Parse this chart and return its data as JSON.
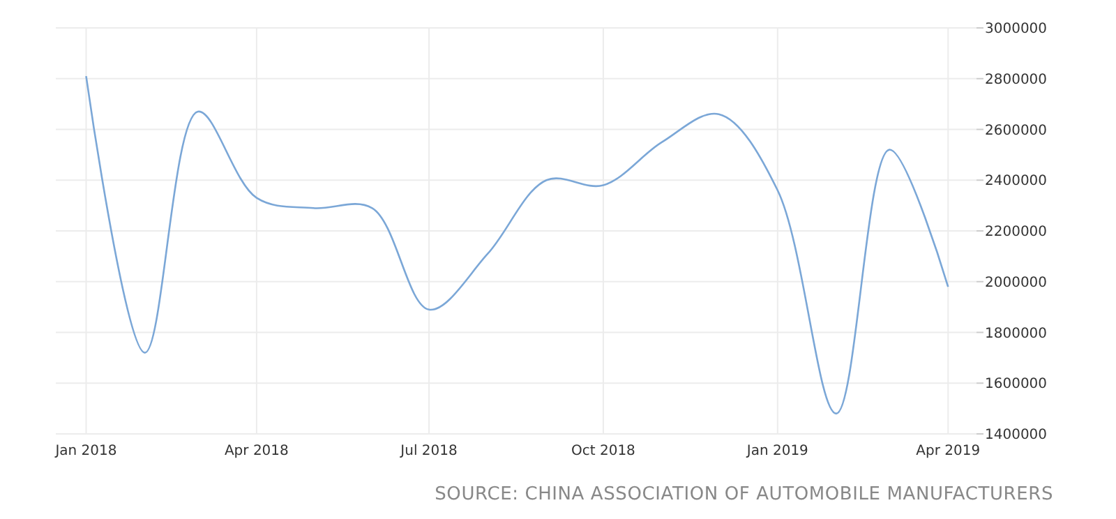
{
  "chart_data": {
    "type": "line",
    "x": [
      "2018-01",
      "2018-02",
      "2018-03",
      "2018-04",
      "2018-05",
      "2018-06",
      "2018-07",
      "2018-08",
      "2018-09",
      "2018-10",
      "2018-11",
      "2018-12",
      "2019-01",
      "2019-02",
      "2019-03",
      "2019-04"
    ],
    "series": [
      {
        "color": "#7ba7d7",
        "values": [
          2810000,
          1720000,
          2670000,
          2330000,
          2290000,
          2290000,
          1890000,
          2110000,
          2400000,
          2380000,
          2550000,
          2660000,
          2360000,
          1480000,
          2520000,
          1980000
        ]
      }
    ],
    "xlim": [
      "2017-12-16",
      "2019-04-16"
    ],
    "xticks": [
      {
        "value": "2018-01",
        "label": "Jan 2018"
      },
      {
        "value": "2018-04",
        "label": "Apr 2018"
      },
      {
        "value": "2018-07",
        "label": "Jul 2018"
      },
      {
        "value": "2018-10",
        "label": "Oct 2018"
      },
      {
        "value": "2019-01",
        "label": "Jan 2019"
      },
      {
        "value": "2019-04",
        "label": "Apr 2019"
      }
    ],
    "ylim": [
      1400000,
      3000000
    ],
    "yticks": [
      1400000,
      1600000,
      1800000,
      2000000,
      2200000,
      2400000,
      2600000,
      2800000,
      3000000
    ],
    "grid": true,
    "marker": "none",
    "line_style": "solid",
    "annotations": [
      "SOURCE: CHINA ASSOCIATION OF AUTOMOBILE MANUFACTURERS"
    ]
  }
}
